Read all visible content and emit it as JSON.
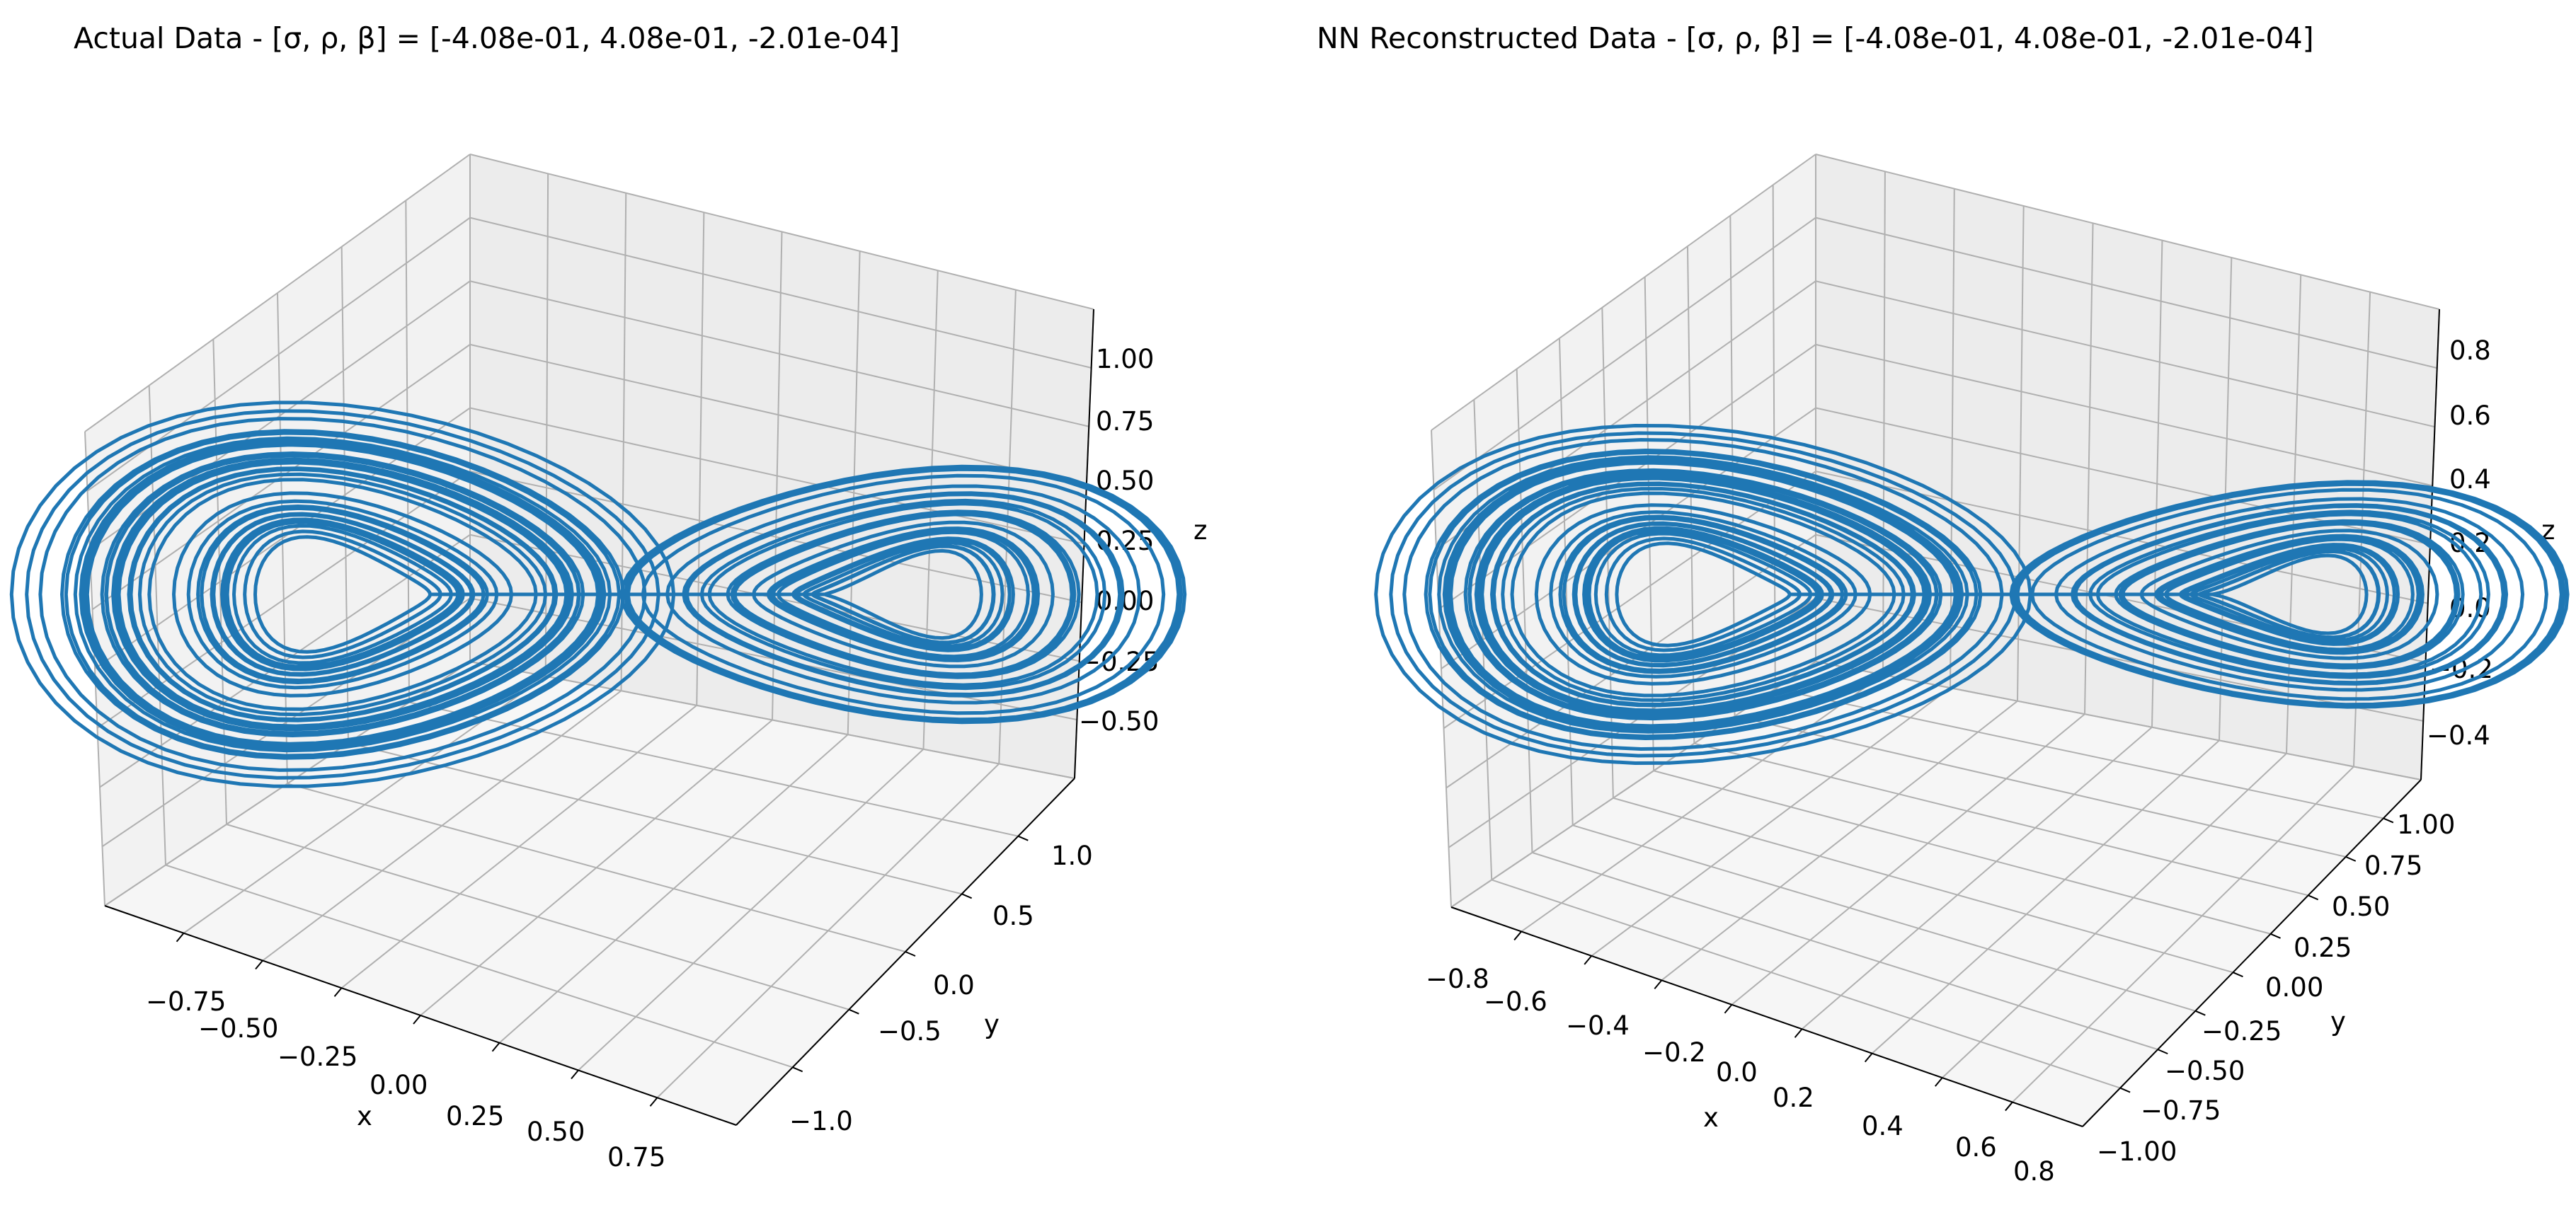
{
  "chart_data": [
    {
      "type": "line",
      "title": "Actual Data - [σ, ρ, β] = [-4.08e-01,  4.08e-01, -2.01e-04]",
      "xlabel": "x",
      "ylabel": "y",
      "zlabel": "z",
      "x_ticks": [
        "−0.75",
        "−0.50",
        "−0.25",
        "0.00",
        "0.25",
        "0.50",
        "0.75"
      ],
      "y_ticks": [
        "−1.0",
        "−0.5",
        "0.0",
        "0.5",
        "1.0"
      ],
      "z_ticks": [
        "−0.50",
        "−0.25",
        "0.00",
        "0.25",
        "0.50",
        "0.75",
        "1.00"
      ],
      "xlim": [
        -0.9,
        0.9
      ],
      "ylim": [
        -1.2,
        1.2
      ],
      "zlim": [
        -0.7,
        1.1
      ],
      "grid": true,
      "color": "#1f77b4",
      "attractor": {
        "left_center": [
          -0.45,
          0.0
        ],
        "right_center": [
          0.45,
          0.0
        ],
        "max_radius": 0.55
      }
    },
    {
      "type": "line",
      "title": "NN Reconstructed Data - [σ, ρ, β] = [-4.08e-01,  4.08e-01, -2.01e-04]",
      "xlabel": "x",
      "ylabel": "y",
      "zlabel": "z",
      "x_ticks": [
        "−0.8",
        "−0.6",
        "−0.4",
        "−0.2",
        "0.0",
        "0.2",
        "0.4",
        "0.6",
        "0.8"
      ],
      "y_ticks": [
        "−1.00",
        "−0.75",
        "−0.50",
        "−0.25",
        "0.00",
        "0.25",
        "0.50",
        "0.75",
        "1.00"
      ],
      "z_ticks": [
        "−0.4",
        "−0.2",
        "0.0",
        "0.2",
        "0.4",
        "0.6",
        "0.8"
      ],
      "xlim": [
        -0.9,
        0.9
      ],
      "ylim": [
        -1.1,
        1.1
      ],
      "zlim": [
        -0.5,
        0.9
      ],
      "grid": true,
      "color": "#1f77b4",
      "attractor": {
        "left_center": [
          -0.45,
          0.0
        ],
        "right_center": [
          0.45,
          0.0
        ],
        "max_radius": 0.52
      }
    }
  ]
}
